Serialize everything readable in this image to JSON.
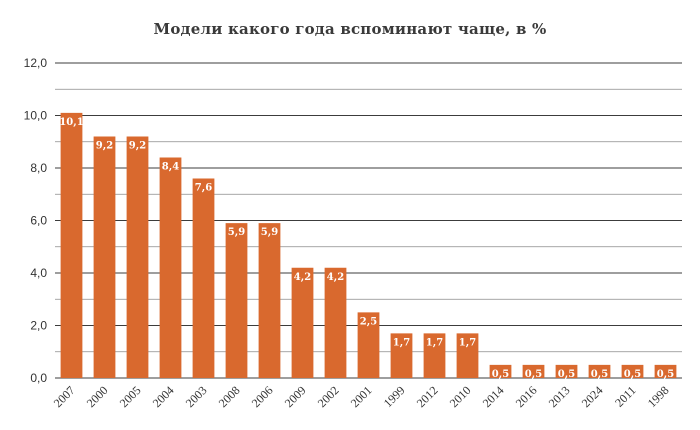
{
  "chart_data": {
    "type": "bar",
    "title": "Модели какого года вспоминают чаще, в %",
    "categories": [
      "2007",
      "2000",
      "2005",
      "2004",
      "2003",
      "2008",
      "2006",
      "2009",
      "2002",
      "2001",
      "1999",
      "2012",
      "2010",
      "2014",
      "2016",
      "2013",
      "2024",
      "2011",
      "1998"
    ],
    "values": [
      10.1,
      9.2,
      9.2,
      8.4,
      7.6,
      5.9,
      5.9,
      4.2,
      4.2,
      2.5,
      1.7,
      1.7,
      1.7,
      0.5,
      0.5,
      0.5,
      0.5,
      0.5,
      0.5
    ],
    "value_labels": [
      "10,1",
      "9,2",
      "9,2",
      "8,4",
      "7,6",
      "5,9",
      "5,9",
      "4,2",
      "4,2",
      "2,5",
      "1,7",
      "1,7",
      "1,7",
      "0,5",
      "0,5",
      "0,5",
      "0,5",
      "0,5",
      "0,5"
    ],
    "ylim": [
      0,
      12
    ],
    "y_ticks": [
      0,
      2,
      4,
      6,
      8,
      10,
      12
    ],
    "y_tick_labels": [
      "0,0",
      "2,0",
      "4,0",
      "6,0",
      "8,0",
      "10,0",
      "12,0"
    ],
    "grid": true,
    "minor_gridlines": true,
    "legend": "none",
    "xlabel": "",
    "ylabel": "",
    "colors": {
      "bar": "#d9692e",
      "major_grid": "#3c3c3c",
      "minor_grid": "#8a8a8a",
      "label_text": "#ffffff"
    }
  }
}
